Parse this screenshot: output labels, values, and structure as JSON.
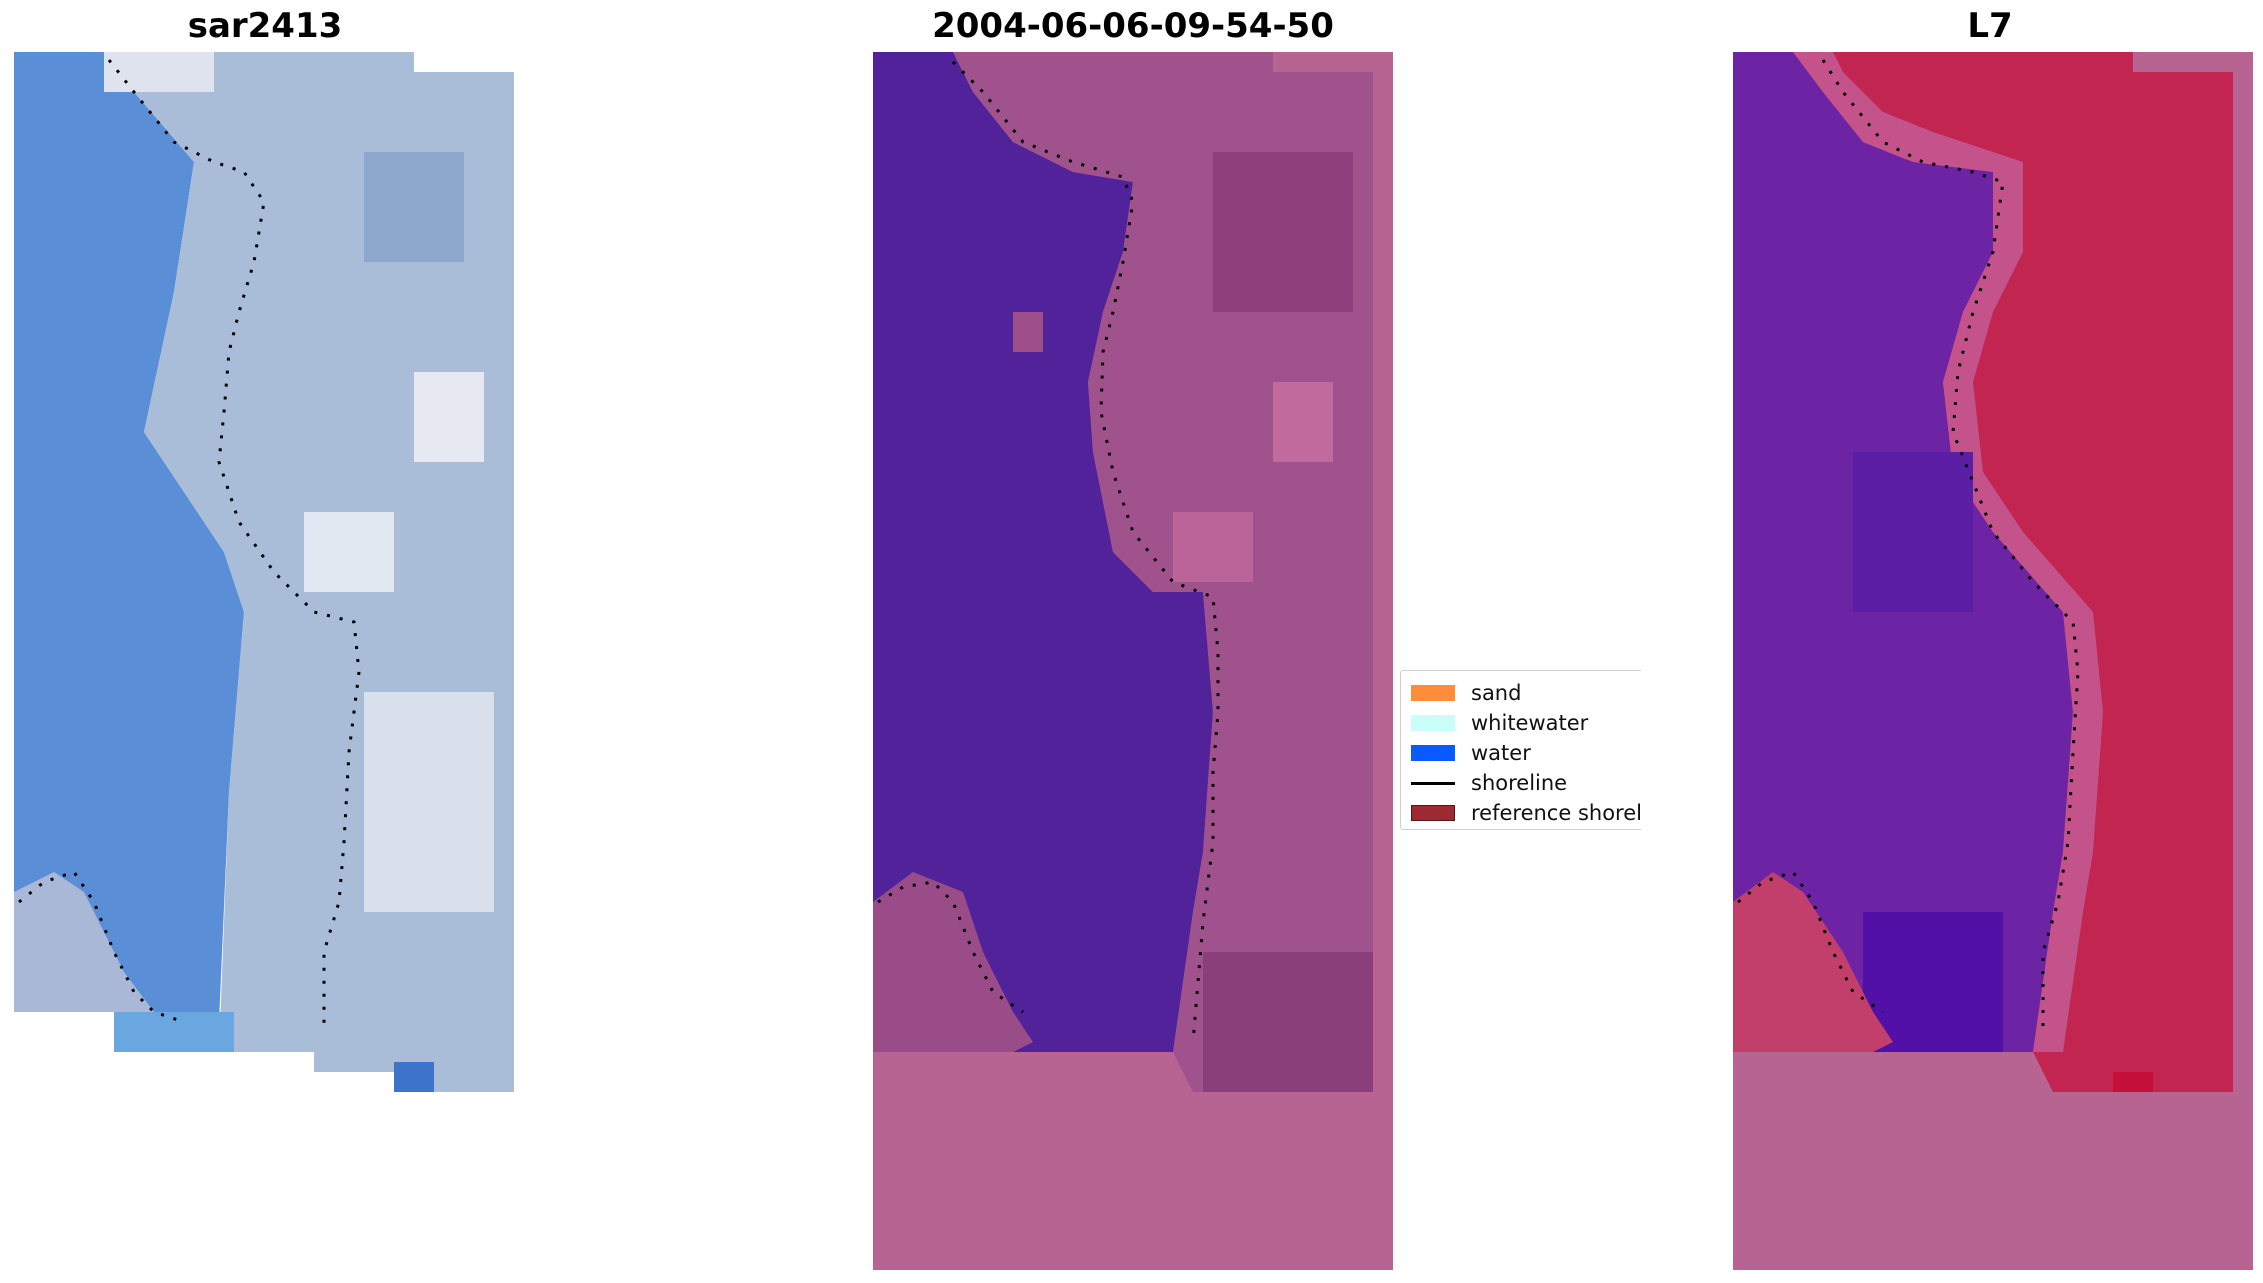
{
  "panels": [
    {
      "title": "sar2413"
    },
    {
      "title": "2004-06-06-09-54-50"
    },
    {
      "title": "L7"
    }
  ],
  "legend": {
    "items": [
      {
        "label": "sand",
        "color": "#ff8c3a",
        "kind": "patch"
      },
      {
        "label": "whitewater",
        "color": "#c8fff8",
        "kind": "patch"
      },
      {
        "label": "water",
        "color": "#0a5aff",
        "kind": "patch"
      },
      {
        "label": "shoreline",
        "color": "#000000",
        "kind": "line"
      },
      {
        "label": "reference shoreline buffer",
        "color": "#9c2a30",
        "kind": "patch"
      }
    ]
  },
  "colors": {
    "water_rgb": "#5a8fd6",
    "land_rgb": "#a9bad6",
    "water_class": "#51229a",
    "land_class": "#9c4f89",
    "nodata": "#b86493",
    "water_ndwi": "#6a22a6",
    "land_ndwi": "#c2254f"
  }
}
